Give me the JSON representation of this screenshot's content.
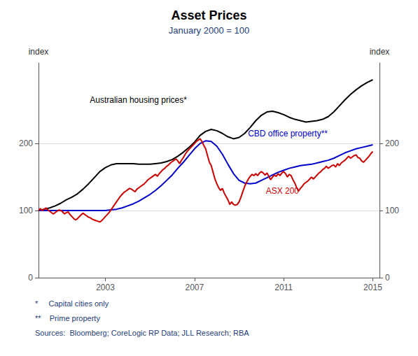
{
  "chart_data": {
    "type": "line",
    "title": "Asset Prices",
    "subtitle": "January 2000 = 100",
    "ylabel": "index",
    "y2label": "index",
    "xlim": [
      2000.0,
      2015.3
    ],
    "xticks": [
      2003,
      2007,
      2011,
      2015
    ],
    "ylim": [
      0,
      320
    ],
    "yticks": [
      0,
      100,
      200
    ],
    "y2lim": [
      0,
      320
    ],
    "y2ticks": [
      0,
      100,
      200
    ],
    "grid": true,
    "series": [
      {
        "color": "#000000",
        "x": [
          2000.0,
          2000.25,
          2000.5,
          2000.75,
          2001.0,
          2001.25,
          2001.5,
          2001.75,
          2002.0,
          2002.25,
          2002.5,
          2002.75,
          2003.0,
          2003.25,
          2003.5,
          2003.75,
          2004.0,
          2004.25,
          2004.5,
          2004.75,
          2005.0,
          2005.25,
          2005.5,
          2005.75,
          2006.0,
          2006.25,
          2006.5,
          2006.75,
          2007.0,
          2007.25,
          2007.5,
          2007.75,
          2008.0,
          2008.25,
          2008.5,
          2008.75,
          2009.0,
          2009.25,
          2009.5,
          2009.75,
          2010.0,
          2010.25,
          2010.5,
          2010.75,
          2011.0,
          2011.25,
          2011.5,
          2011.75,
          2012.0,
          2012.25,
          2012.5,
          2012.75,
          2013.0,
          2013.25,
          2013.5,
          2013.75,
          2014.0,
          2014.25,
          2014.5,
          2014.75,
          2015.0
        ],
        "values": [
          100,
          102,
          104,
          107,
          111,
          116,
          120,
          125,
          132,
          140,
          149,
          158,
          164,
          168,
          170,
          170,
          170,
          170,
          169,
          169,
          169,
          170,
          171,
          173,
          176,
          181,
          187,
          194,
          202,
          212,
          218,
          221,
          219,
          215,
          210,
          207,
          209,
          215,
          224,
          234,
          242,
          247,
          248,
          246,
          243,
          239,
          236,
          234,
          232,
          233,
          234,
          236,
          240,
          247,
          256,
          265,
          273,
          280,
          286,
          291,
          295
        ]
      },
      {
        "color": "#0000cc",
        "x": [
          2000.0,
          2000.25,
          2000.5,
          2000.75,
          2001.0,
          2001.25,
          2001.5,
          2001.75,
          2002.0,
          2002.25,
          2002.5,
          2002.75,
          2003.0,
          2003.25,
          2003.5,
          2003.75,
          2004.0,
          2004.25,
          2004.5,
          2004.75,
          2005.0,
          2005.25,
          2005.5,
          2005.75,
          2006.0,
          2006.25,
          2006.5,
          2006.75,
          2007.0,
          2007.25,
          2007.5,
          2007.75,
          2008.0,
          2008.25,
          2008.5,
          2008.75,
          2009.0,
          2009.25,
          2009.5,
          2009.75,
          2010.0,
          2010.25,
          2010.5,
          2010.75,
          2011.0,
          2011.25,
          2011.5,
          2011.75,
          2012.0,
          2012.25,
          2012.5,
          2012.75,
          2013.0,
          2013.25,
          2013.5,
          2013.75,
          2014.0,
          2014.25,
          2014.5,
          2014.75,
          2015.0
        ],
        "values": [
          100,
          100,
          100,
          100,
          100,
          100,
          100,
          100,
          100,
          100,
          100,
          100,
          100,
          101,
          102,
          104,
          107,
          110,
          114,
          119,
          124,
          130,
          137,
          145,
          153,
          163,
          172,
          182,
          192,
          200,
          204,
          203,
          196,
          184,
          169,
          155,
          145,
          141,
          140,
          141,
          145,
          149,
          153,
          157,
          160,
          163,
          165,
          167,
          168,
          169,
          171,
          173,
          175,
          178,
          182,
          186,
          189,
          192,
          194,
          196,
          198
        ]
      },
      {
        "color": "#cc0000",
        "x": [
          2000.0,
          2000.083,
          2000.167,
          2000.25,
          2000.333,
          2000.417,
          2000.5,
          2000.583,
          2000.667,
          2000.75,
          2000.833,
          2000.917,
          2001.0,
          2001.083,
          2001.167,
          2001.25,
          2001.333,
          2001.417,
          2001.5,
          2001.583,
          2001.667,
          2001.75,
          2001.833,
          2001.917,
          2002.0,
          2002.083,
          2002.167,
          2002.25,
          2002.333,
          2002.417,
          2002.5,
          2002.583,
          2002.667,
          2002.75,
          2002.833,
          2002.917,
          2003.0,
          2003.083,
          2003.167,
          2003.25,
          2003.333,
          2003.417,
          2003.5,
          2003.583,
          2003.667,
          2003.75,
          2003.833,
          2003.917,
          2004.0,
          2004.083,
          2004.167,
          2004.25,
          2004.333,
          2004.417,
          2004.5,
          2004.583,
          2004.667,
          2004.75,
          2004.833,
          2004.917,
          2005.0,
          2005.083,
          2005.167,
          2005.25,
          2005.333,
          2005.417,
          2005.5,
          2005.583,
          2005.667,
          2005.75,
          2005.833,
          2005.917,
          2006.0,
          2006.083,
          2006.167,
          2006.25,
          2006.333,
          2006.417,
          2006.5,
          2006.583,
          2006.667,
          2006.75,
          2006.833,
          2006.917,
          2007.0,
          2007.083,
          2007.167,
          2007.25,
          2007.333,
          2007.417,
          2007.5,
          2007.583,
          2007.667,
          2007.75,
          2007.833,
          2007.917,
          2008.0,
          2008.083,
          2008.167,
          2008.25,
          2008.333,
          2008.417,
          2008.5,
          2008.583,
          2008.667,
          2008.75,
          2008.833,
          2008.917,
          2009.0,
          2009.083,
          2009.167,
          2009.25,
          2009.333,
          2009.417,
          2009.5,
          2009.583,
          2009.667,
          2009.75,
          2009.833,
          2009.917,
          2010.0,
          2010.083,
          2010.167,
          2010.25,
          2010.333,
          2010.417,
          2010.5,
          2010.583,
          2010.667,
          2010.75,
          2010.833,
          2010.917,
          2011.0,
          2011.083,
          2011.167,
          2011.25,
          2011.333,
          2011.417,
          2011.5,
          2011.583,
          2011.667,
          2011.75,
          2011.833,
          2011.917,
          2012.0,
          2012.083,
          2012.167,
          2012.25,
          2012.333,
          2012.417,
          2012.5,
          2012.583,
          2012.667,
          2012.75,
          2012.833,
          2012.917,
          2013.0,
          2013.083,
          2013.167,
          2013.25,
          2013.333,
          2013.417,
          2013.5,
          2013.583,
          2013.667,
          2013.75,
          2013.833,
          2013.917,
          2014.0,
          2014.083,
          2014.167,
          2014.25,
          2014.333,
          2014.417,
          2014.5,
          2014.583,
          2014.667,
          2014.75,
          2014.833,
          2014.917,
          2015.0
        ],
        "values": [
          100,
          103,
          100,
          102,
          104,
          101,
          99,
          97,
          95,
          97,
          99,
          101,
          100,
          98,
          95,
          97,
          98,
          94,
          91,
          88,
          86,
          88,
          91,
          94,
          96,
          94,
          92,
          90,
          89,
          87,
          86,
          85,
          84,
          83,
          85,
          88,
          91,
          94,
          97,
          101,
          105,
          109,
          113,
          117,
          121,
          124,
          127,
          129,
          131,
          133,
          132,
          130,
          128,
          132,
          134,
          136,
          138,
          140,
          143,
          146,
          148,
          150,
          152,
          154,
          151,
          155,
          158,
          161,
          163,
          166,
          168,
          171,
          173,
          175,
          177,
          174,
          170,
          175,
          179,
          184,
          188,
          191,
          194,
          197,
          200,
          203,
          205,
          207,
          203,
          197,
          192,
          182,
          172,
          167,
          157,
          147,
          140,
          134,
          130,
          133,
          126,
          121,
          116,
          109,
          113,
          109,
          108,
          109,
          113,
          120,
          128,
          136,
          142,
          147,
          151,
          154,
          152,
          155,
          152,
          156,
          158,
          156,
          153,
          156,
          151,
          146,
          150,
          153,
          151,
          155,
          152,
          156,
          158,
          155,
          150,
          154,
          152,
          146,
          141,
          134,
          129,
          133,
          136,
          140,
          142,
          144,
          147,
          150,
          147,
          150,
          153,
          156,
          158,
          161,
          163,
          166,
          163,
          165,
          167,
          168,
          165,
          170,
          167,
          171,
          173,
          175,
          178,
          181,
          178,
          180,
          182,
          183,
          179,
          178,
          174,
          172,
          175,
          178,
          181,
          185,
          188
        ]
      }
    ],
    "annotations": [
      {
        "text": "Australian housing prices*",
        "x": 2002.3,
        "y": 258,
        "color": "#000000"
      },
      {
        "text": "CBD office property**",
        "x": 2009.4,
        "y": 208,
        "color": "#0000cc"
      },
      {
        "text": "ASX 200",
        "x": 2010.2,
        "y": 123,
        "color": "#cc0000"
      }
    ],
    "footnotes": [
      "*     Capital cities only",
      "**    Prime property",
      "Sources:  Bloomberg; CoreLogic RP Data; JLL Research; RBA"
    ]
  }
}
